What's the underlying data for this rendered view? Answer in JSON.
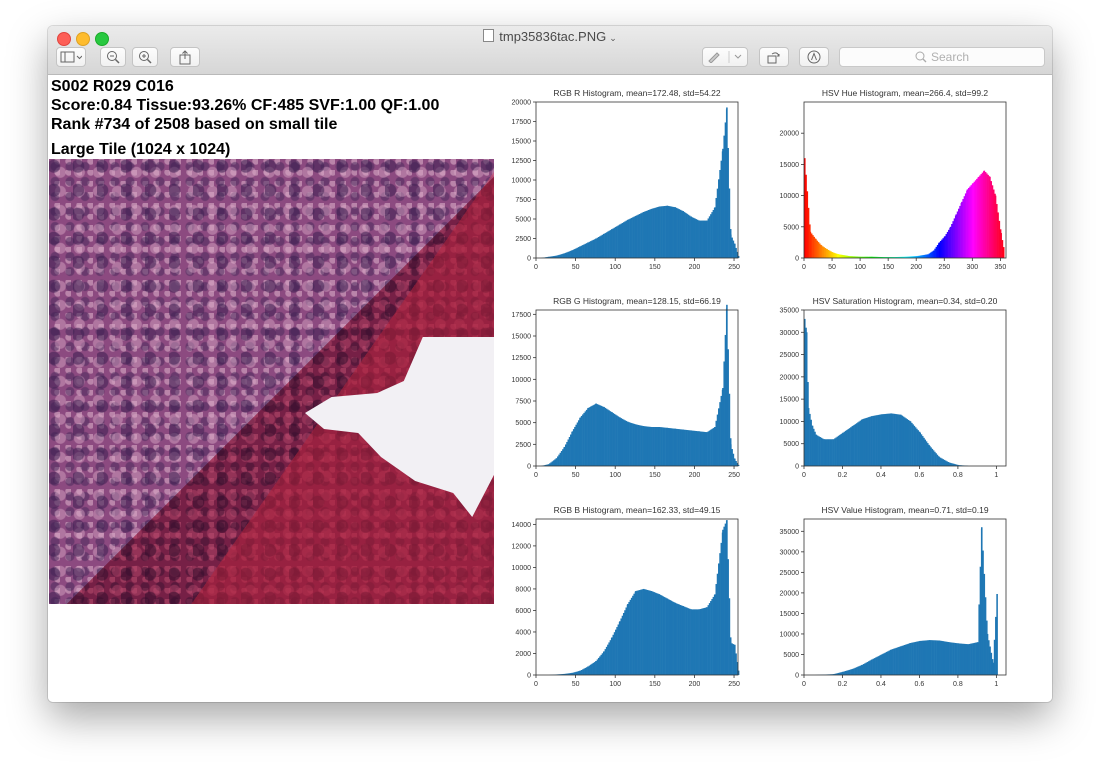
{
  "window": {
    "title": "tmp35836tac.PNG",
    "search_placeholder": "Search"
  },
  "info": {
    "line1": "S002 R029 C016",
    "line2": "Score:0.84 Tissue:93.26% CF:485 SVF:1.00 QF:1.00",
    "line3": "Rank #734 of 2508 based on small tile",
    "tile_title": "Large Tile (1024 x 1024)"
  },
  "colors": {
    "bar": "#1f77b4",
    "axes": "#333333"
  },
  "chart_data": [
    {
      "type": "bar",
      "title": "RGB R Histogram, mean=172.48, std=54.22",
      "xlim": [
        0,
        255
      ],
      "ylim": [
        0,
        20000
      ],
      "xticks": [
        0,
        50,
        100,
        150,
        200,
        250
      ],
      "yticks": [
        0,
        2500,
        5000,
        7500,
        10000,
        12500,
        15000,
        17500,
        20000
      ],
      "x": [
        5,
        15,
        25,
        35,
        45,
        55,
        65,
        75,
        85,
        95,
        105,
        115,
        125,
        135,
        145,
        155,
        165,
        175,
        185,
        195,
        205,
        215,
        225,
        235,
        240,
        245,
        250,
        255
      ],
      "values": [
        0,
        150,
        300,
        600,
        1000,
        1500,
        2000,
        2500,
        3100,
        3700,
        4300,
        4900,
        5400,
        5900,
        6300,
        6600,
        6700,
        6500,
        6000,
        5300,
        4800,
        4800,
        6500,
        14000,
        19300,
        3000,
        1800,
        200
      ]
    },
    {
      "type": "bar",
      "title": "HSV Hue Histogram, mean=266.4, std=99.2",
      "xlim": [
        0,
        360
      ],
      "ylim": [
        0,
        25000
      ],
      "xticks": [
        0,
        50,
        100,
        150,
        200,
        250,
        300,
        350
      ],
      "yticks": [
        0,
        5000,
        10000,
        15000,
        20000
      ],
      "x": [
        0,
        10,
        20,
        30,
        40,
        50,
        60,
        80,
        100,
        120,
        140,
        160,
        180,
        200,
        220,
        230,
        240,
        250,
        260,
        270,
        280,
        290,
        300,
        310,
        320,
        330,
        340,
        350,
        355
      ],
      "values": [
        16000,
        4200,
        3000,
        2000,
        1400,
        900,
        600,
        300,
        200,
        200,
        150,
        150,
        200,
        300,
        600,
        1200,
        2500,
        3500,
        5000,
        7000,
        9000,
        11000,
        12000,
        13000,
        14000,
        13000,
        10000,
        4000,
        1500
      ]
    },
    {
      "type": "bar",
      "title": "RGB G Histogram, mean=128.15, std=66.19",
      "xlim": [
        0,
        255
      ],
      "ylim": [
        0,
        18000
      ],
      "xticks": [
        0,
        50,
        100,
        150,
        200,
        250
      ],
      "yticks": [
        0,
        2500,
        5000,
        7500,
        10000,
        12500,
        15000,
        17500
      ],
      "x": [
        5,
        15,
        25,
        35,
        45,
        55,
        65,
        75,
        85,
        95,
        105,
        115,
        125,
        135,
        145,
        155,
        165,
        175,
        185,
        195,
        205,
        215,
        225,
        235,
        240,
        245,
        250,
        255
      ],
      "values": [
        0,
        200,
        900,
        2200,
        4000,
        5600,
        6700,
        7200,
        6800,
        6200,
        5600,
        5100,
        4800,
        4600,
        4500,
        4500,
        4400,
        4300,
        4200,
        4100,
        4000,
        3900,
        4500,
        9000,
        18600,
        2500,
        800,
        100
      ]
    },
    {
      "type": "bar",
      "title": "HSV Saturation Histogram, mean=0.34, std=0.20",
      "xlim": [
        0,
        1.05
      ],
      "ylim": [
        0,
        35000
      ],
      "xticks": [
        0.0,
        0.2,
        0.4,
        0.6,
        0.8,
        1.0
      ],
      "yticks": [
        0,
        5000,
        10000,
        15000,
        20000,
        25000,
        30000,
        35000
      ],
      "x": [
        0.0,
        0.01,
        0.02,
        0.04,
        0.06,
        0.1,
        0.15,
        0.2,
        0.25,
        0.3,
        0.35,
        0.4,
        0.45,
        0.5,
        0.55,
        0.6,
        0.65,
        0.7,
        0.75,
        0.8,
        0.85
      ],
      "values": [
        33000,
        30000,
        13000,
        9000,
        7000,
        6000,
        6000,
        7500,
        9000,
        10500,
        11200,
        11600,
        11800,
        11500,
        10000,
        7500,
        4500,
        2000,
        800,
        200,
        50
      ]
    },
    {
      "type": "bar",
      "title": "RGB B Histogram, mean=162.33, std=49.15",
      "xlim": [
        0,
        255
      ],
      "ylim": [
        0,
        14500
      ],
      "xticks": [
        0,
        50,
        100,
        150,
        200,
        250
      ],
      "yticks": [
        0,
        2000,
        4000,
        6000,
        8000,
        10000,
        12000,
        14000
      ],
      "x": [
        5,
        15,
        25,
        35,
        45,
        55,
        65,
        75,
        85,
        95,
        105,
        115,
        125,
        135,
        145,
        155,
        165,
        175,
        185,
        195,
        205,
        215,
        225,
        235,
        240,
        245,
        250,
        255
      ],
      "values": [
        0,
        0,
        50,
        100,
        200,
        400,
        800,
        1300,
        2200,
        3500,
        5000,
        6600,
        7800,
        8000,
        7800,
        7500,
        7100,
        6700,
        6400,
        6100,
        6100,
        6300,
        7500,
        13500,
        14400,
        3000,
        2800,
        300
      ]
    },
    {
      "type": "bar",
      "title": "HSV Value Histogram, mean=0.71, std=0.19",
      "xlim": [
        0,
        1.05
      ],
      "ylim": [
        0,
        38000
      ],
      "xticks": [
        0.0,
        0.2,
        0.4,
        0.6,
        0.8,
        1.0
      ],
      "yticks": [
        0,
        5000,
        10000,
        15000,
        20000,
        25000,
        30000,
        35000
      ],
      "x": [
        0.05,
        0.15,
        0.2,
        0.25,
        0.3,
        0.35,
        0.4,
        0.45,
        0.5,
        0.55,
        0.6,
        0.65,
        0.7,
        0.75,
        0.8,
        0.85,
        0.9,
        0.92,
        0.95,
        0.98,
        1.0
      ],
      "values": [
        0,
        200,
        800,
        1500,
        2500,
        3800,
        5000,
        6200,
        7000,
        7800,
        8300,
        8500,
        8400,
        8000,
        7700,
        7500,
        8000,
        36000,
        10000,
        3000,
        20000
      ]
    }
  ]
}
